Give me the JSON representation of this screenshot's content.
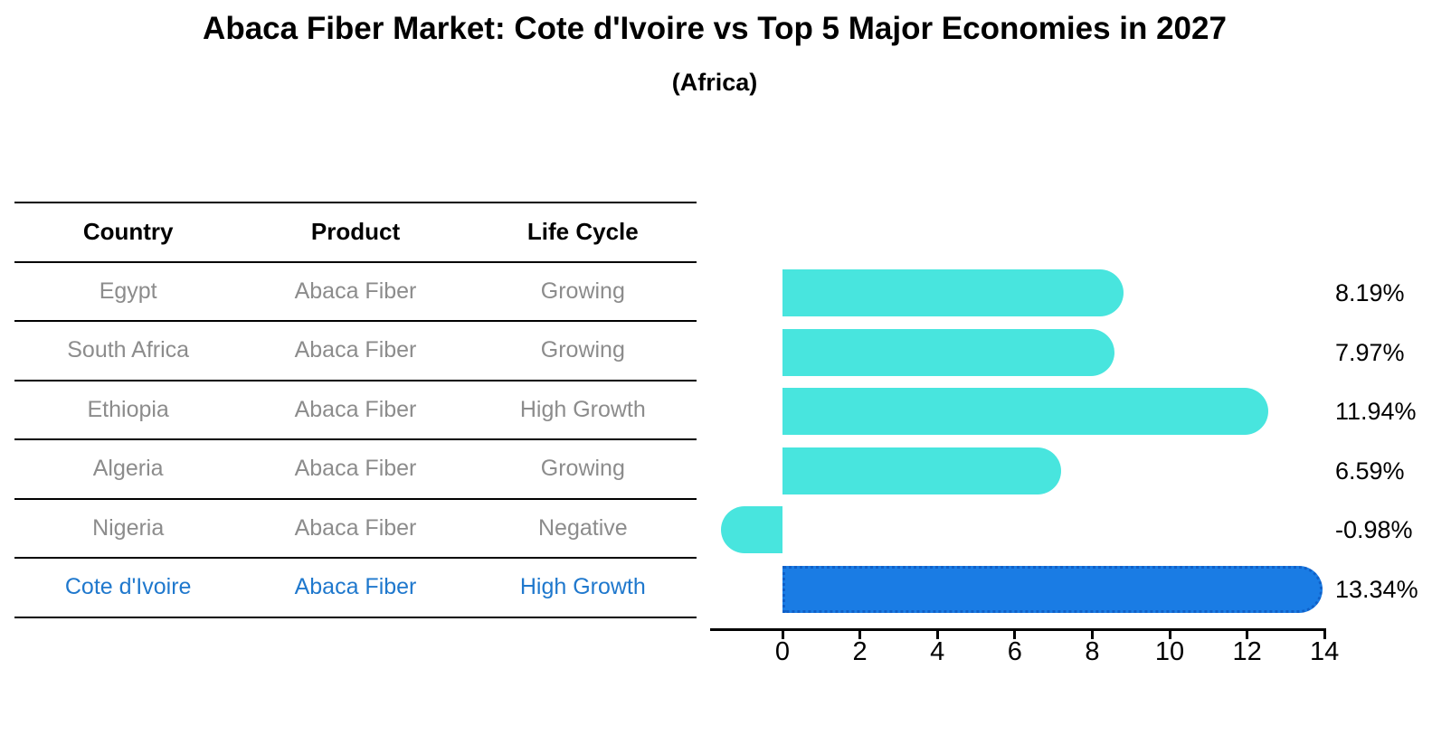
{
  "title": "Abaca Fiber Market: Cote d'Ivoire vs Top 5 Major Economies in 2027",
  "subtitle": "(Africa)",
  "table": {
    "headers": [
      "Country",
      "Product",
      "Life Cycle"
    ],
    "rows": [
      {
        "country": "Egypt",
        "product": "Abaca Fiber",
        "life_cycle": "Growing",
        "highlight": false
      },
      {
        "country": "South Africa",
        "product": "Abaca Fiber",
        "life_cycle": "Growing",
        "highlight": false
      },
      {
        "country": "Ethiopia",
        "product": "Abaca Fiber",
        "life_cycle": "High Growth",
        "highlight": false
      },
      {
        "country": "Algeria",
        "product": "Abaca Fiber",
        "life_cycle": "Growing",
        "highlight": false
      },
      {
        "country": "Nigeria",
        "product": "Abaca Fiber",
        "life_cycle": "Negative",
        "highlight": false
      },
      {
        "country": "Cote d'Ivoire",
        "product": "Abaca Fiber",
        "life_cycle": "High Growth",
        "highlight": true
      }
    ]
  },
  "chart_data": {
    "type": "bar",
    "orientation": "horizontal",
    "categories": [
      "Egypt",
      "South Africa",
      "Ethiopia",
      "Algeria",
      "Nigeria",
      "Cote d'Ivoire"
    ],
    "values": [
      8.19,
      7.97,
      11.94,
      6.59,
      -0.98,
      13.34
    ],
    "value_labels": [
      "8.19%",
      "7.97%",
      "11.94%",
      "6.59%",
      "-0.98%",
      "13.34%"
    ],
    "highlight_index": 5,
    "xticks": [
      0,
      2,
      4,
      6,
      8,
      10,
      12,
      14
    ],
    "xlim": [
      -1.9,
      14.05
    ],
    "grid": false,
    "legend": false,
    "bar_color": "#48E5DE",
    "highlight_bar_color": "#1A7CE4",
    "highlight_border_color": "#1060C8",
    "title": "Abaca Fiber Market: Cote d'Ivoire vs Top 5 Major Economies in 2027",
    "subtitle": "(Africa)"
  },
  "colors": {
    "background": "#ffffff",
    "text": "#000000",
    "muted_row_text": "#8c8c8c",
    "highlight_text": "#1f78cd",
    "table_line": "#000000"
  }
}
